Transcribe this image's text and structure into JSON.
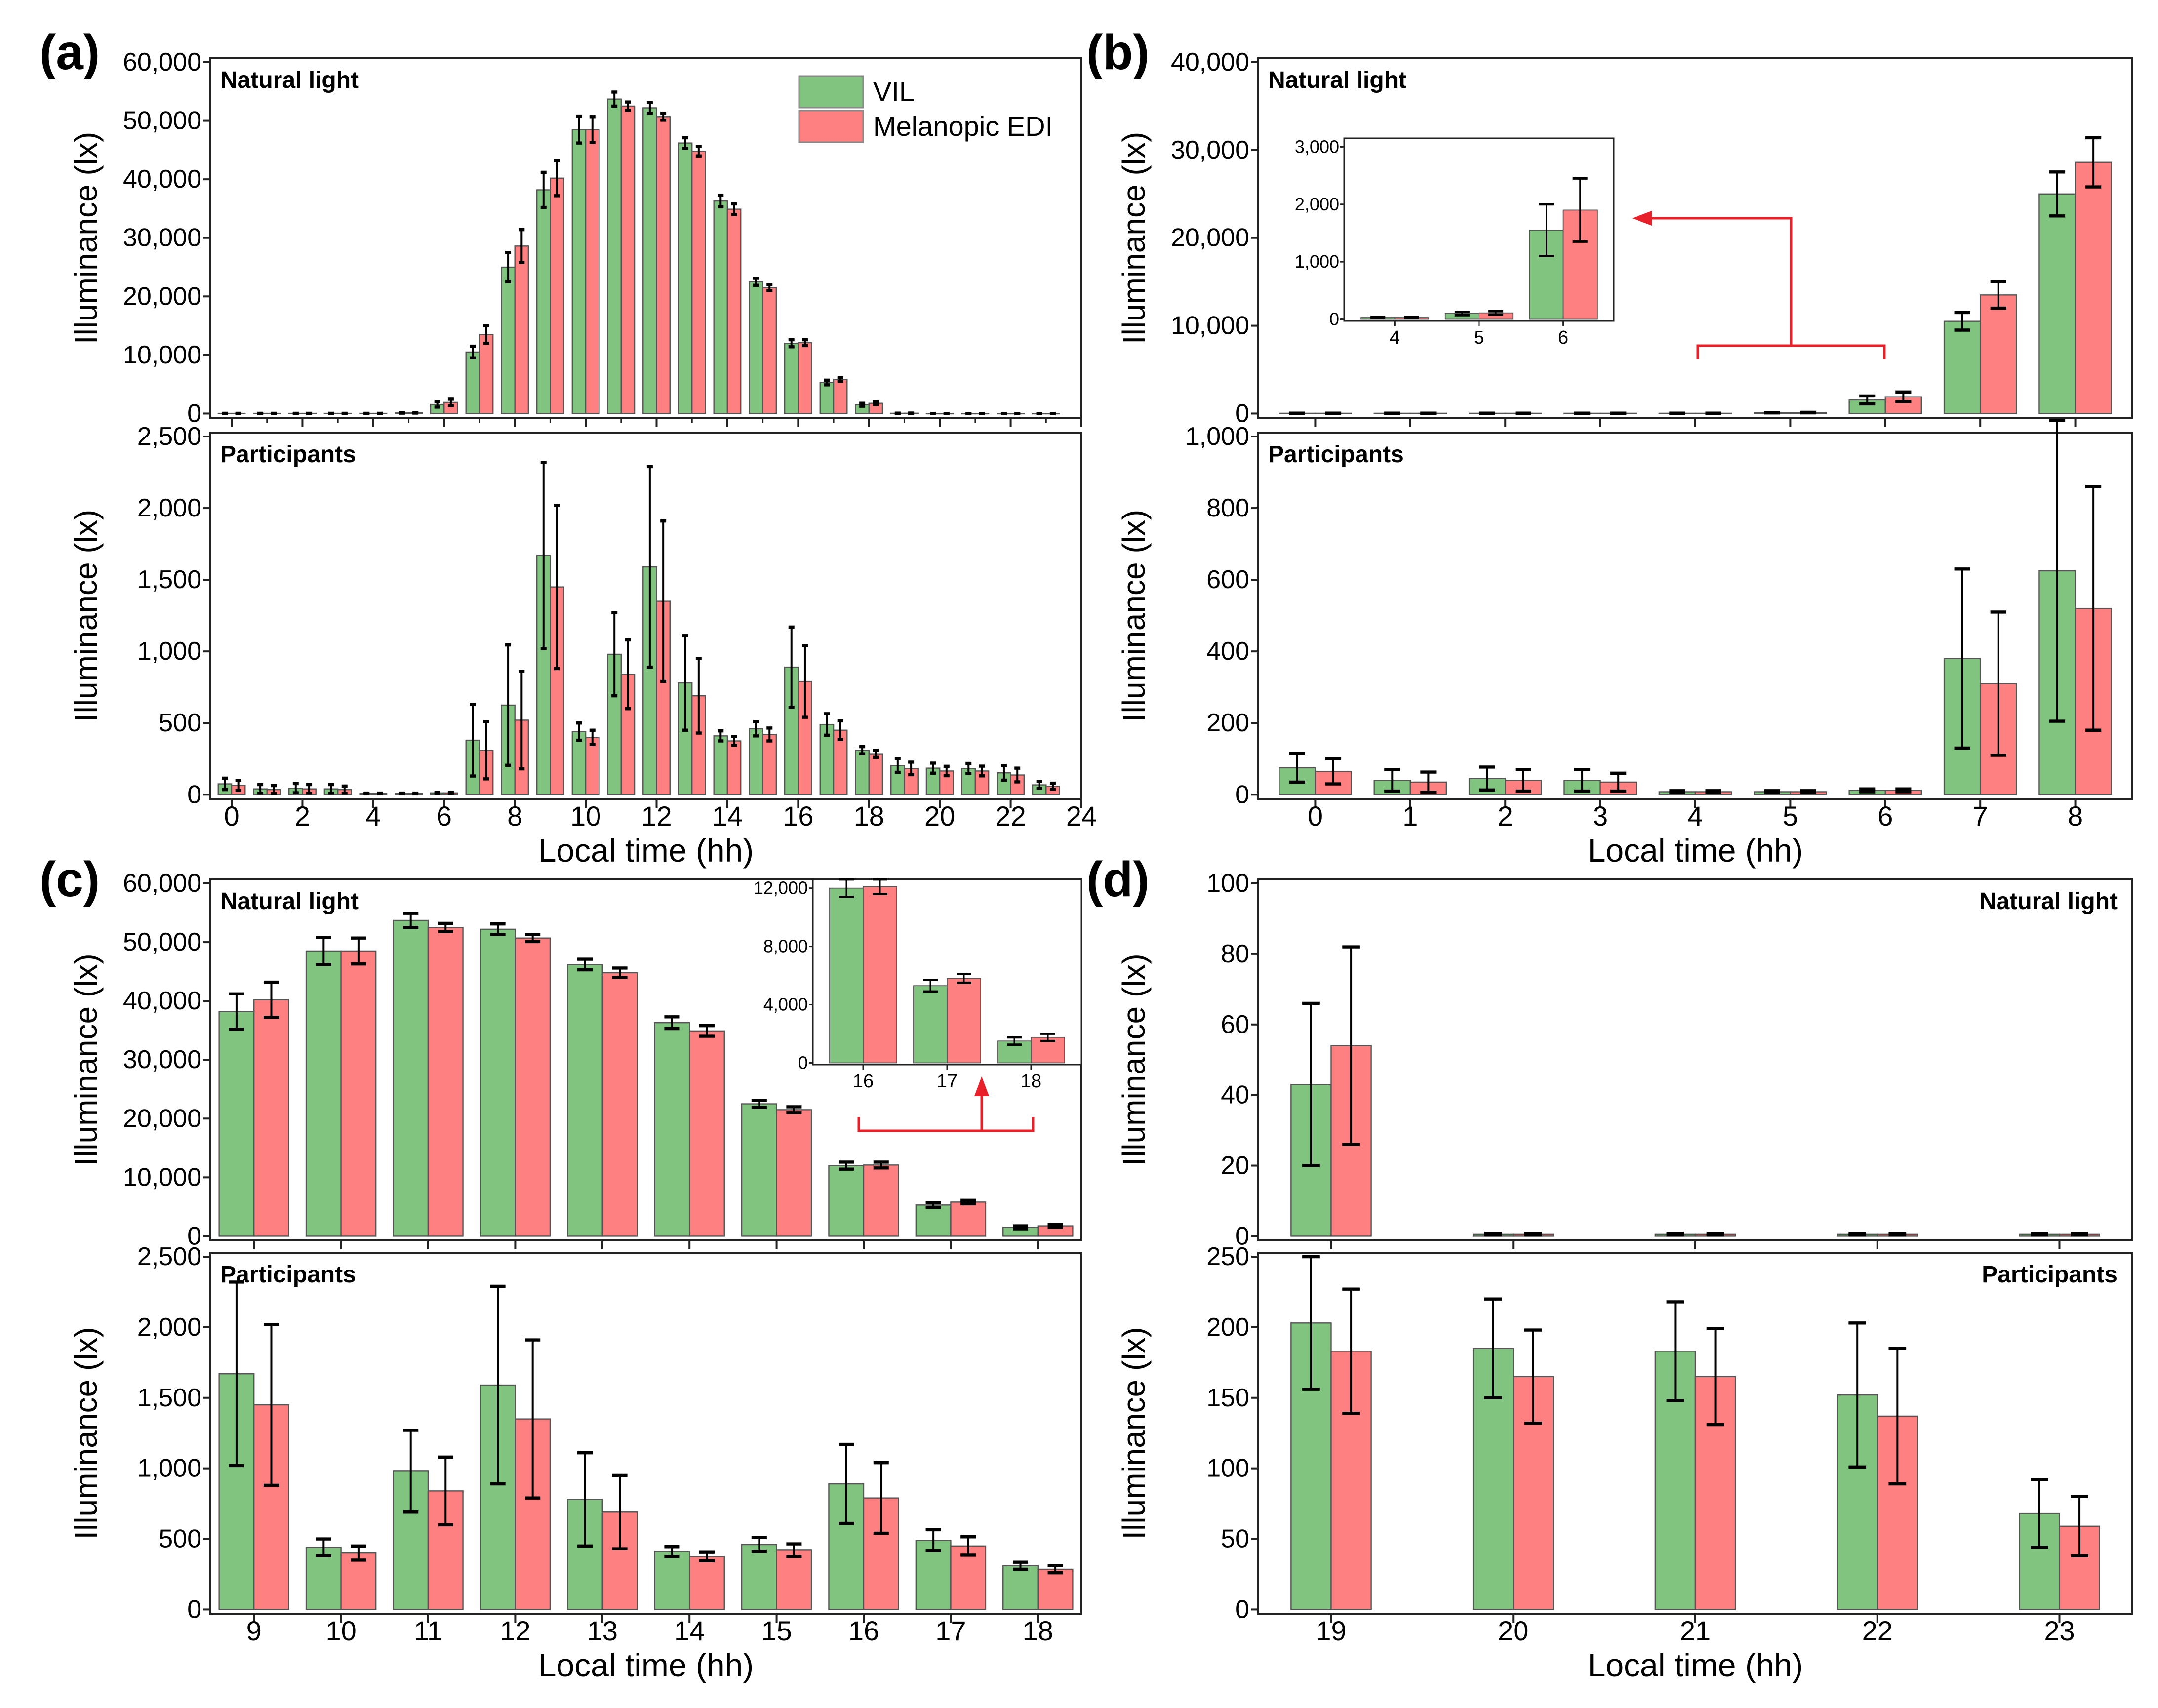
{
  "chart_data": {
    "type": "bar",
    "legend": [
      "VIL",
      "Melanopic EDI"
    ],
    "legend_position": "top-right of panel (a)",
    "xlabel": "Local time (hh)",
    "ylabel": "Illuminance (lx)",
    "colors": {
      "vil": "#80C480",
      "edi": "#FF8080",
      "arrow": "#E8202A"
    },
    "hours": [
      0,
      1,
      2,
      3,
      4,
      5,
      6,
      7,
      8,
      9,
      10,
      11,
      12,
      13,
      14,
      15,
      16,
      17,
      18,
      19,
      20,
      21,
      22,
      23
    ],
    "natural_light": {
      "title": "Natural light",
      "vil": [
        30,
        30,
        30,
        30,
        30,
        100,
        1550,
        10500,
        25000,
        38200,
        48500,
        53700,
        52200,
        46200,
        36300,
        22500,
        12000,
        5300,
        1500,
        43,
        0.5,
        0.5,
        0.5,
        0.5
      ],
      "vil_err": [
        10,
        10,
        10,
        10,
        10,
        30,
        450,
        1000,
        2500,
        3000,
        2300,
        1200,
        900,
        900,
        1000,
        600,
        600,
        400,
        250,
        23,
        0.2,
        0.2,
        0.2,
        0.2
      ],
      "edi": [
        30,
        30,
        30,
        30,
        30,
        110,
        1900,
        13500,
        28600,
        40200,
        48500,
        52500,
        50700,
        44800,
        34900,
        21500,
        12100,
        5800,
        1750,
        54,
        0.5,
        0.5,
        0.5,
        0.5
      ],
      "edi_err": [
        10,
        10,
        10,
        10,
        10,
        30,
        550,
        1500,
        2800,
        3000,
        2200,
        700,
        600,
        800,
        900,
        500,
        500,
        300,
        250,
        28,
        0.2,
        0.2,
        0.2,
        0.2
      ]
    },
    "participants": {
      "title": "Participants",
      "vil": [
        75,
        40,
        45,
        40,
        8,
        8,
        12,
        380,
        625,
        1670,
        440,
        980,
        1590,
        780,
        410,
        460,
        890,
        490,
        310,
        203,
        185,
        183,
        152,
        68
      ],
      "vil_err": [
        40,
        30,
        32,
        30,
        3,
        3,
        4,
        250,
        420,
        650,
        60,
        290,
        700,
        330,
        35,
        50,
        280,
        75,
        25,
        47,
        35,
        35,
        51,
        24
      ],
      "edi": [
        65,
        35,
        40,
        35,
        8,
        8,
        12,
        310,
        520,
        1450,
        400,
        840,
        1350,
        690,
        375,
        420,
        790,
        450,
        285,
        183,
        165,
        165,
        137,
        59
      ],
      "edi_err": [
        35,
        28,
        30,
        25,
        3,
        3,
        4,
        200,
        340,
        570,
        50,
        240,
        560,
        260,
        30,
        45,
        250,
        65,
        25,
        44,
        33,
        34,
        48,
        21
      ]
    },
    "panels": [
      {
        "label": "(a)",
        "hours": [
          0,
          23
        ],
        "xticks": [
          0,
          2,
          4,
          6,
          8,
          10,
          12,
          14,
          16,
          18,
          20,
          22,
          24
        ],
        "natural": {
          "ylim": [
            0,
            60000
          ],
          "yticks": [
            0,
            10000,
            20000,
            30000,
            40000,
            50000,
            60000
          ]
        },
        "participants": {
          "ylim": [
            0,
            2500
          ],
          "yticks": [
            0,
            500,
            1000,
            1500,
            2000,
            2500
          ]
        },
        "show_legend": true
      },
      {
        "label": "(b)",
        "hours": [
          0,
          8
        ],
        "xticks": [
          0,
          1,
          2,
          3,
          4,
          5,
          6,
          7,
          8
        ],
        "natural": {
          "ylim": [
            0,
            40000
          ],
          "yticks": [
            0,
            10000,
            20000,
            30000,
            40000
          ]
        },
        "participants": {
          "ylim": [
            0,
            1000
          ],
          "yticks": [
            0,
            200,
            400,
            600,
            800,
            1000
          ]
        },
        "inset": {
          "hours": [
            4,
            6
          ],
          "ylim": [
            0,
            3000
          ],
          "yticks": [
            0,
            1000,
            2000,
            3000
          ],
          "xticks": [
            4,
            5,
            6
          ]
        }
      },
      {
        "label": "(c)",
        "hours": [
          9,
          18
        ],
        "xticks": [
          9,
          10,
          11,
          12,
          13,
          14,
          15,
          16,
          17,
          18
        ],
        "natural": {
          "ylim": [
            0,
            60000
          ],
          "yticks": [
            0,
            10000,
            20000,
            30000,
            40000,
            50000,
            60000
          ]
        },
        "participants": {
          "ylim": [
            0,
            2500
          ],
          "yticks": [
            0,
            500,
            1000,
            1500,
            2000,
            2500
          ]
        },
        "inset": {
          "hours": [
            16,
            18
          ],
          "ylim": [
            0,
            12000
          ],
          "yticks": [
            0,
            4000,
            8000,
            12000
          ],
          "xticks": [
            16,
            17,
            18
          ]
        }
      },
      {
        "label": "(d)",
        "hours": [
          19,
          23
        ],
        "xticks": [
          19,
          20,
          21,
          22,
          23
        ],
        "natural": {
          "ylim": [
            0,
            100
          ],
          "yticks": [
            0,
            20,
            40,
            60,
            80,
            100
          ]
        },
        "participants": {
          "ylim": [
            0,
            250
          ],
          "yticks": [
            0,
            50,
            100,
            150,
            200,
            250
          ]
        },
        "titles_right": true
      }
    ]
  }
}
